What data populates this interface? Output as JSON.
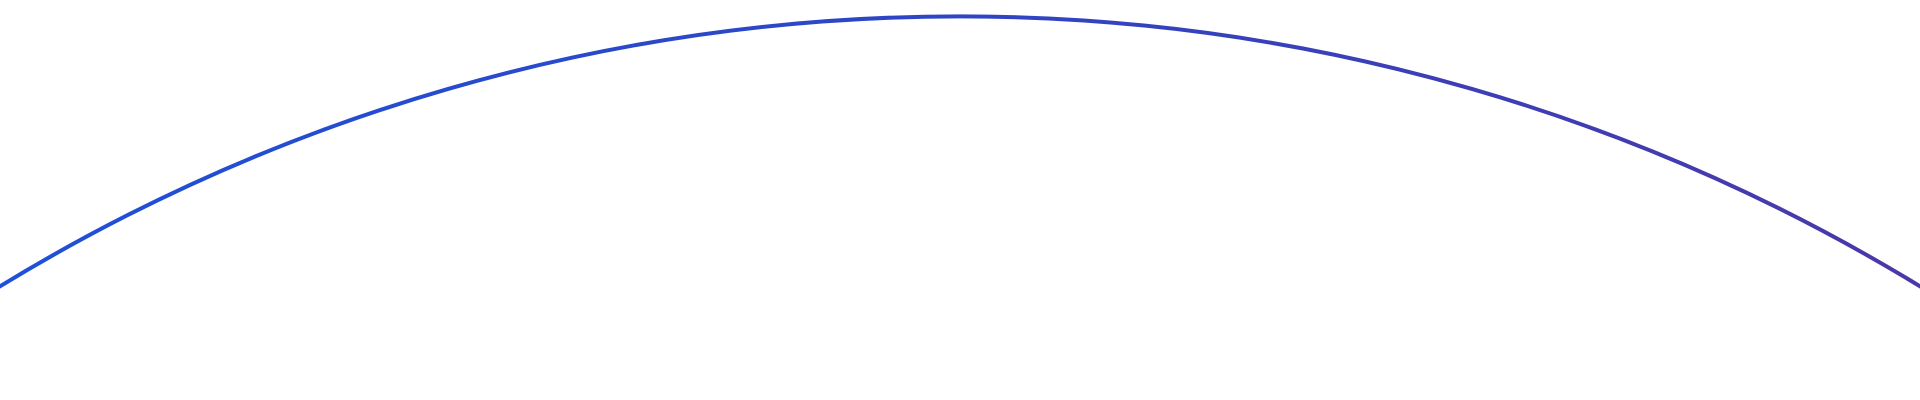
{
  "background_color": "#ffffff",
  "arc": {
    "gradient_start_color": "#1f50d8",
    "gradient_mid_color": "#2f45c4",
    "gradient_end_color": "#4a38a8"
  }
}
